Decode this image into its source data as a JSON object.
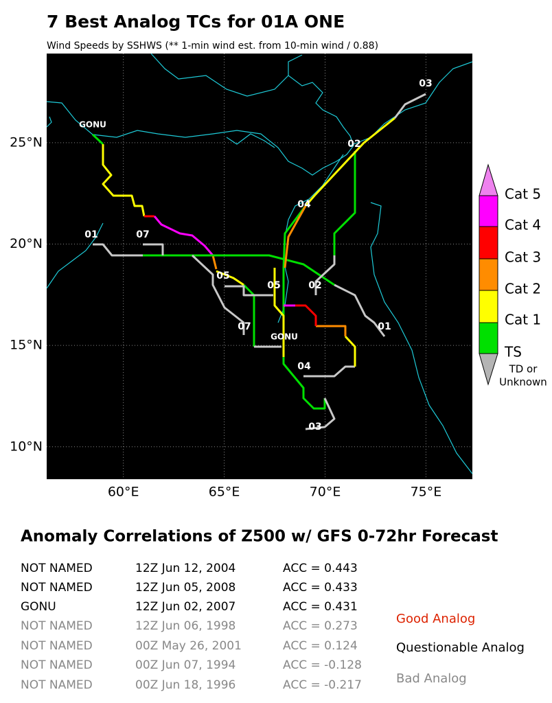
{
  "map": {
    "title": "7 Best Analog TCs for 01A ONE",
    "subtitle": "Wind Speeds by SSHWS (** 1-min wind est. from 10-min wind / 0.88)",
    "xlim": [
      56.2,
      77.3
    ],
    "ylim": [
      8.4,
      29.4
    ],
    "xticks": [
      {
        "value": 60,
        "label": "60°E"
      },
      {
        "value": 65,
        "label": "65°E"
      },
      {
        "value": 70,
        "label": "70°E"
      },
      {
        "value": 75,
        "label": "75°E"
      }
    ],
    "yticks": [
      {
        "value": 10,
        "label": "10°N"
      },
      {
        "value": 15,
        "label": "15°N"
      },
      {
        "value": 20,
        "label": "20°N"
      },
      {
        "value": 25,
        "label": "25°N"
      }
    ],
    "track_labels": [
      "GONU",
      "01",
      "07",
      "05",
      "07",
      "05",
      "02",
      "02",
      "01",
      "03",
      "04",
      "04",
      "03",
      "GONU"
    ]
  },
  "legend": [
    "Cat 5",
    "Cat 4",
    "Cat 3",
    "Cat 2",
    "Cat 1",
    "TS",
    "TD or",
    "Unknown"
  ],
  "table": {
    "title": "Anomaly Correlations of Z500 w/ GFS 0-72hr Forecast",
    "rows": [
      [
        "NOT NAMED",
        "12Z Jun 12, 2004",
        "ACC = 0.443"
      ],
      [
        "NOT NAMED",
        "12Z Jun 05, 2008",
        "ACC = 0.433"
      ],
      [
        "GONU",
        "12Z Jun 02, 2007",
        "ACC = 0.431"
      ],
      [
        "NOT NAMED",
        "12Z Jun 06, 1998",
        "ACC = 0.273"
      ],
      [
        "NOT NAMED",
        "00Z May 26, 2001",
        "ACC = 0.124"
      ],
      [
        "NOT NAMED",
        "00Z Jun 07, 1994",
        "ACC = -0.128"
      ],
      [
        "NOT NAMED",
        "00Z Jun 18, 1996",
        "ACC = -0.217"
      ]
    ]
  },
  "key": [
    "Good Analog",
    "Questionable Analog",
    "Bad Analog"
  ]
}
